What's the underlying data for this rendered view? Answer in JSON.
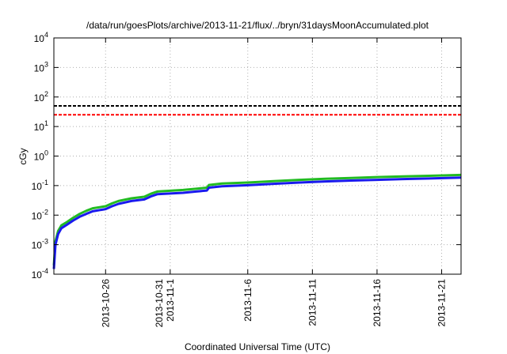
{
  "chart_data": {
    "type": "line",
    "title": "/data/run/goesPlots/archive/2013-11-21/flux/../bryn/31daysMoonAccumulated.plot",
    "xlabel": "Coordinated Universal Time (UTC)",
    "ylabel": "cGy",
    "yscale": "log",
    "ylim": [
      0.0001,
      10000
    ],
    "xlim": [
      "2013-10-22",
      "2013-11-22T12:00"
    ],
    "grid": true,
    "y_ticks": [
      {
        "base": "10",
        "exp": "-4",
        "value": 0.0001
      },
      {
        "base": "10",
        "exp": "-3",
        "value": 0.001
      },
      {
        "base": "10",
        "exp": "-2",
        "value": 0.01
      },
      {
        "base": "10",
        "exp": "-1",
        "value": 0.1
      },
      {
        "base": "10",
        "exp": "0",
        "value": 1
      },
      {
        "base": "10",
        "exp": "1",
        "value": 10
      },
      {
        "base": "10",
        "exp": "2",
        "value": 100
      },
      {
        "base": "10",
        "exp": "3",
        "value": 1000
      },
      {
        "base": "10",
        "exp": "4",
        "value": 10000
      }
    ],
    "x_ticks": [
      {
        "date": "2013-10-26",
        "lines": [
          "2013-10-26"
        ]
      },
      {
        "date": "2013-10-31",
        "lines": [
          "2013-10-31",
          "2013-11-1"
        ]
      },
      {
        "date": "2013-11-06",
        "lines": [
          "2013-11-6"
        ]
      },
      {
        "date": "2013-11-11",
        "lines": [
          "2013-11-11"
        ]
      },
      {
        "date": "2013-11-16",
        "lines": [
          "2013-11-16"
        ]
      },
      {
        "date": "2013-11-21",
        "lines": [
          "2013-11-21"
        ]
      }
    ],
    "reference_lines": [
      {
        "y": 50,
        "color": "#000000"
      },
      {
        "y": 25,
        "color": "#ff0000"
      }
    ],
    "series": [
      {
        "color": "#22bb22",
        "x": [
          "2013-10-22",
          "2013-10-22T03:00",
          "2013-10-22T08:00",
          "2013-10-22T14:00",
          "2013-10-23",
          "2013-10-23T12:00",
          "2013-10-24",
          "2013-10-24T12:00",
          "2013-10-25",
          "2013-10-26",
          "2013-10-26T12:00",
          "2013-10-27",
          "2013-10-28",
          "2013-10-29",
          "2013-10-29T12:00",
          "2013-10-30",
          "2013-11-01",
          "2013-11-02",
          "2013-11-02T20:00",
          "2013-11-03",
          "2013-11-04",
          "2013-11-06",
          "2013-11-08",
          "2013-11-10",
          "2013-11-12",
          "2013-11-14",
          "2013-11-16",
          "2013-11-18",
          "2013-11-20",
          "2013-11-22T12:00"
        ],
        "values": [
          0.0002,
          0.0013,
          0.0029,
          0.0045,
          0.0058,
          0.0082,
          0.011,
          0.014,
          0.017,
          0.02,
          0.025,
          0.03,
          0.037,
          0.042,
          0.053,
          0.063,
          0.071,
          0.078,
          0.085,
          0.105,
          0.117,
          0.127,
          0.142,
          0.157,
          0.17,
          0.182,
          0.194,
          0.205,
          0.215,
          0.23
        ]
      },
      {
        "color": "#1a1aee",
        "x": [
          "2013-10-22",
          "2013-10-22T03:00",
          "2013-10-22T08:00",
          "2013-10-22T14:00",
          "2013-10-23",
          "2013-10-23T12:00",
          "2013-10-24",
          "2013-10-24T12:00",
          "2013-10-25",
          "2013-10-26",
          "2013-10-26T12:00",
          "2013-10-27",
          "2013-10-28",
          "2013-10-29",
          "2013-10-29T12:00",
          "2013-10-30",
          "2013-11-01",
          "2013-11-02",
          "2013-11-02T20:00",
          "2013-11-03",
          "2013-11-04",
          "2013-11-06",
          "2013-11-08",
          "2013-11-10",
          "2013-11-12",
          "2013-11-14",
          "2013-11-16",
          "2013-11-18",
          "2013-11-20",
          "2013-11-22T12:00"
        ],
        "values": [
          0.00015,
          0.001,
          0.0023,
          0.0036,
          0.0047,
          0.0066,
          0.0088,
          0.011,
          0.0135,
          0.016,
          0.02,
          0.024,
          0.03,
          0.034,
          0.043,
          0.051,
          0.057,
          0.063,
          0.068,
          0.085,
          0.095,
          0.103,
          0.115,
          0.127,
          0.138,
          0.148,
          0.157,
          0.166,
          0.174,
          0.186
        ]
      }
    ]
  }
}
